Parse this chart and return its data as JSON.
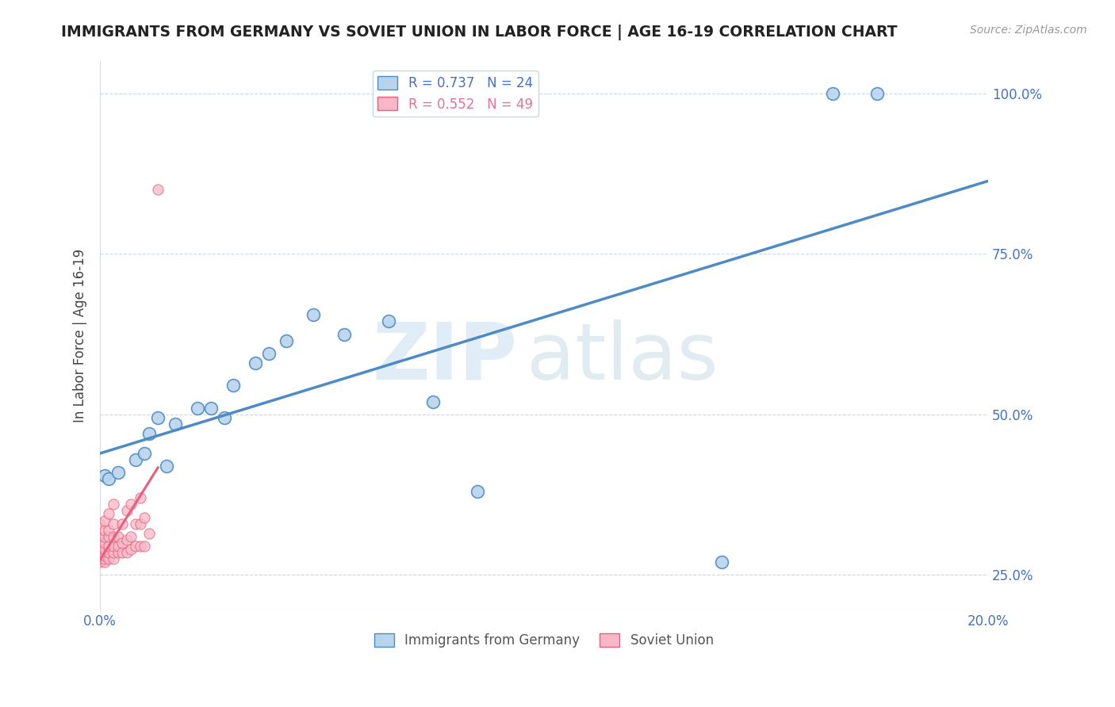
{
  "title": "IMMIGRANTS FROM GERMANY VS SOVIET UNION IN LABOR FORCE | AGE 16-19 CORRELATION CHART",
  "source": "Source: ZipAtlas.com",
  "ylabel": "In Labor Force | Age 16-19",
  "xlim": [
    0.0,
    0.2
  ],
  "ylim": [
    0.195,
    1.05
  ],
  "xticks": [
    0.0,
    0.04,
    0.08,
    0.12,
    0.16,
    0.2
  ],
  "xtick_labels": [
    "0.0%",
    "",
    "",
    "",
    "",
    "20.0%"
  ],
  "yticks": [
    0.25,
    0.5,
    0.75,
    1.0
  ],
  "ytick_labels": [
    "25.0%",
    "50.0%",
    "75.0%",
    "100.0%"
  ],
  "germany_R": 0.737,
  "germany_N": 24,
  "soviet_R": 0.552,
  "soviet_N": 49,
  "germany_color": "#b8d4ed",
  "soviet_color": "#f9b8c8",
  "germany_line_color": "#4e8bc4",
  "soviet_line_color": "#e8607a",
  "watermark_zip": "ZIP",
  "watermark_atlas": "atlas",
  "germany_x": [
    0.001,
    0.002,
    0.004,
    0.008,
    0.01,
    0.011,
    0.013,
    0.015,
    0.017,
    0.022,
    0.025,
    0.028,
    0.03,
    0.035,
    0.038,
    0.042,
    0.048,
    0.055,
    0.065,
    0.075,
    0.085,
    0.14,
    0.165,
    0.175
  ],
  "germany_y": [
    0.405,
    0.4,
    0.41,
    0.43,
    0.44,
    0.47,
    0.495,
    0.42,
    0.485,
    0.51,
    0.51,
    0.495,
    0.545,
    0.58,
    0.595,
    0.615,
    0.655,
    0.625,
    0.645,
    0.52,
    0.38,
    0.27,
    1.0,
    1.0
  ],
  "soviet_x": [
    0.0,
    0.0,
    0.0,
    0.0,
    0.0,
    0.0,
    0.0,
    0.0,
    0.001,
    0.001,
    0.001,
    0.001,
    0.001,
    0.001,
    0.001,
    0.001,
    0.002,
    0.002,
    0.002,
    0.002,
    0.002,
    0.002,
    0.003,
    0.003,
    0.003,
    0.003,
    0.003,
    0.003,
    0.004,
    0.004,
    0.004,
    0.005,
    0.005,
    0.005,
    0.006,
    0.006,
    0.006,
    0.007,
    0.007,
    0.007,
    0.008,
    0.008,
    0.009,
    0.009,
    0.009,
    0.01,
    0.01,
    0.011,
    0.013
  ],
  "soviet_y": [
    0.27,
    0.275,
    0.28,
    0.285,
    0.29,
    0.295,
    0.31,
    0.33,
    0.27,
    0.275,
    0.28,
    0.29,
    0.3,
    0.31,
    0.32,
    0.335,
    0.275,
    0.285,
    0.295,
    0.31,
    0.32,
    0.345,
    0.275,
    0.285,
    0.295,
    0.31,
    0.33,
    0.36,
    0.285,
    0.295,
    0.31,
    0.285,
    0.3,
    0.33,
    0.285,
    0.305,
    0.35,
    0.29,
    0.31,
    0.36,
    0.295,
    0.33,
    0.295,
    0.33,
    0.37,
    0.295,
    0.34,
    0.315,
    0.85
  ]
}
